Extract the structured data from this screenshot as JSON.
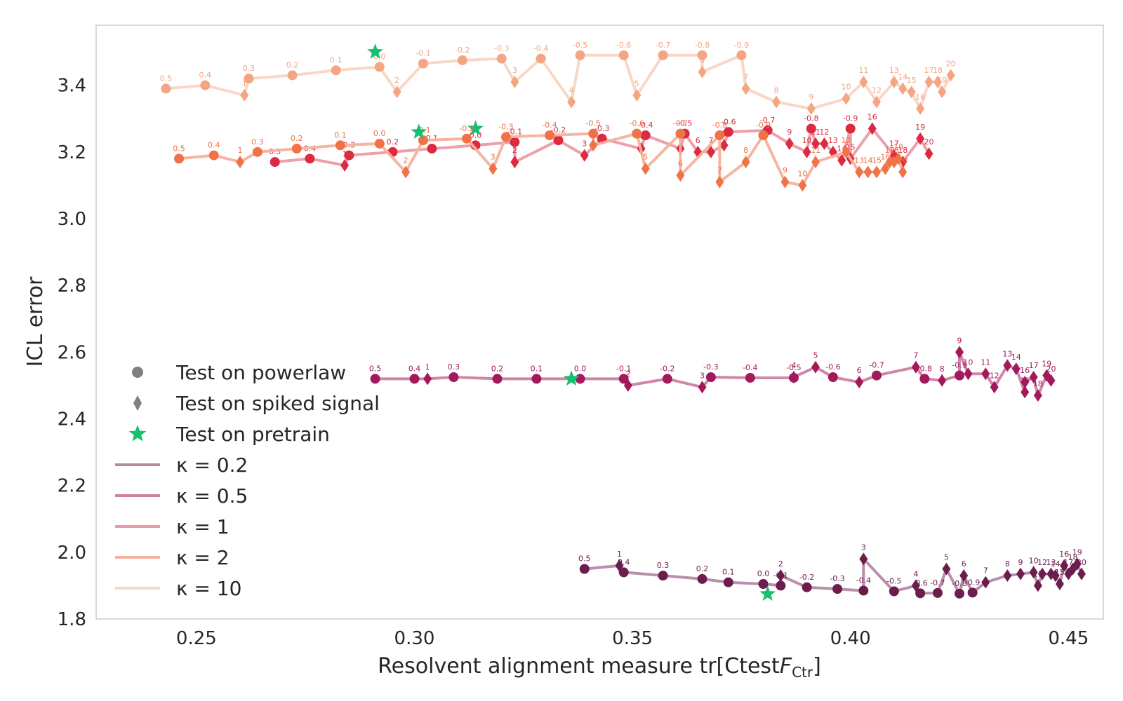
{
  "chart_data": {
    "type": "scatter",
    "xlabel": "Resolvent alignment measure tr[Ctest",
    "xlabel_math": "F",
    "xlabel_sub": "Ctr",
    "xlabel_close": "]",
    "ylabel": "ICL error",
    "xlim": [
      0.227,
      0.458
    ],
    "ylim": [
      1.8,
      3.58
    ],
    "xticks": [
      0.25,
      0.3,
      0.35,
      0.4,
      0.45
    ],
    "xtick_labels": [
      "0.25",
      "0.30",
      "0.35",
      "0.40",
      "0.45"
    ],
    "yticks": [
      1.8,
      2.0,
      2.2,
      2.4,
      2.6,
      2.8,
      3.0,
      3.2,
      3.4
    ],
    "ytick_labels": [
      "1.8",
      "2.0",
      "2.2",
      "2.4",
      "2.6",
      "2.8",
      "3.0",
      "3.2",
      "3.4"
    ],
    "grid": false,
    "legend_position": "lower-left",
    "legend": {
      "markers": [
        {
          "marker": "circle",
          "label": "Test on powerlaw"
        },
        {
          "marker": "diamond",
          "label": "Test on spiked signal"
        },
        {
          "marker": "star",
          "label": "Test on pretrain"
        }
      ],
      "kappa_prefix": "κ = ",
      "series_order": [
        "k02",
        "k05",
        "k1",
        "k2",
        "k10"
      ]
    },
    "series": [
      {
        "id": "k02",
        "kappa": "0.2",
        "color": "#6b1d4e",
        "line_color": "#b48aa5",
        "powerlaw": {
          "labels": [
            "0.5",
            "0.4",
            "0.3",
            "0.2",
            "0.1",
            "0.0",
            "-0.1",
            "-0.2",
            "-0.3",
            "-0.4",
            "-0.5",
            "-0.6",
            "-0.7",
            "-0.8",
            "-0.9"
          ],
          "x": [
            0.339,
            0.348,
            0.357,
            0.366,
            0.372,
            0.38,
            0.384,
            0.39,
            0.397,
            0.403,
            0.41,
            0.416,
            0.42,
            0.425,
            0.428
          ],
          "y": [
            1.95,
            1.94,
            1.93,
            1.92,
            1.91,
            1.905,
            1.9,
            1.895,
            1.89,
            1.885,
            1.883,
            1.877,
            1.878,
            1.876,
            1.879
          ]
        },
        "spiked": {
          "labels": [
            "1",
            "2",
            "3",
            "4",
            "5",
            "6",
            "7",
            "8",
            "9",
            "10",
            "11",
            "12",
            "13",
            "14",
            "15",
            "16",
            "17",
            "18",
            "19",
            "20"
          ],
          "x": [
            0.347,
            0.384,
            0.403,
            0.415,
            0.422,
            0.426,
            0.431,
            0.436,
            0.439,
            0.442,
            0.443,
            0.444,
            0.446,
            0.447,
            0.448,
            0.449,
            0.45,
            0.451,
            0.452,
            0.453
          ],
          "y": [
            1.96,
            1.93,
            1.98,
            1.9,
            1.95,
            1.93,
            1.91,
            1.93,
            1.935,
            1.94,
            1.9,
            1.935,
            1.935,
            1.93,
            1.905,
            1.96,
            1.935,
            1.95,
            1.965,
            1.935
          ]
        },
        "pretrain": {
          "x": 0.381,
          "y": 1.875
        }
      },
      {
        "id": "k05",
        "kappa": "0.5",
        "color": "#a3195b",
        "line_color": "#cf7fa4",
        "powerlaw": {
          "labels": [
            "0.5",
            "0.4",
            "0.3",
            "0.2",
            "0.1",
            "0.0",
            "-0.1",
            "-0.2",
            "-0.3",
            "-0.4",
            "-0.5",
            "-0.6",
            "-0.7",
            "-0.8",
            "-0.9"
          ],
          "x": [
            0.291,
            0.3,
            0.309,
            0.319,
            0.328,
            0.338,
            0.348,
            0.358,
            0.368,
            0.377,
            0.387,
            0.396,
            0.406,
            0.417,
            0.425
          ],
          "y": [
            2.52,
            2.52,
            2.525,
            2.52,
            2.52,
            2.52,
            2.52,
            2.52,
            2.525,
            2.523,
            2.523,
            2.525,
            2.53,
            2.52,
            2.53
          ]
        },
        "spiked": {
          "labels": [
            "1",
            "2",
            "3",
            "4",
            "5",
            "6",
            "7",
            "8",
            "9",
            "10",
            "11",
            "12",
            "13",
            "14",
            "15",
            "16",
            "17",
            "18",
            "19",
            "20"
          ],
          "x": [
            0.303,
            0.349,
            0.366,
            0.387,
            0.392,
            0.402,
            0.415,
            0.421,
            0.425,
            0.427,
            0.431,
            0.433,
            0.436,
            0.438,
            0.44,
            0.44,
            0.442,
            0.443,
            0.445,
            0.446
          ],
          "y": [
            2.52,
            2.5,
            2.495,
            2.525,
            2.555,
            2.51,
            2.555,
            2.515,
            2.6,
            2.535,
            2.535,
            2.495,
            2.56,
            2.55,
            2.48,
            2.51,
            2.525,
            2.47,
            2.53,
            2.515
          ]
        },
        "pretrain": {
          "x": 0.336,
          "y": 2.52
        }
      },
      {
        "id": "k1",
        "kappa": "1",
        "color": "#dc2a41",
        "line_color": "#ec9aa5",
        "powerlaw": {
          "labels": [
            "0.5",
            "0.4",
            "0.3",
            "0.2",
            "0.1",
            "0.0",
            "-0.1",
            "-0.2",
            "-0.3",
            "-0.4",
            "-0.5",
            "-0.6",
            "-0.7",
            "-0.8",
            "-0.9"
          ],
          "x": [
            0.268,
            0.276,
            0.285,
            0.295,
            0.304,
            0.314,
            0.323,
            0.333,
            0.343,
            0.353,
            0.362,
            0.372,
            0.381,
            0.391,
            0.4
          ],
          "y": [
            3.17,
            3.18,
            3.19,
            3.2,
            3.21,
            3.22,
            3.23,
            3.235,
            3.24,
            3.25,
            3.255,
            3.26,
            3.265,
            3.27,
            3.27
          ]
        },
        "spiked": {
          "labels": [
            "1",
            "2",
            "3",
            "4",
            "5",
            "6",
            "7",
            "8",
            "9",
            "10",
            "11",
            "12",
            "13",
            "14",
            "15",
            "16",
            "17",
            "18",
            "19",
            "20"
          ],
          "x": [
            0.284,
            0.323,
            0.339,
            0.352,
            0.361,
            0.365,
            0.368,
            0.371,
            0.386,
            0.39,
            0.392,
            0.394,
            0.396,
            0.398,
            0.4,
            0.405,
            0.41,
            0.412,
            0.416,
            0.418
          ],
          "y": [
            3.16,
            3.17,
            3.19,
            3.21,
            3.21,
            3.2,
            3.2,
            3.22,
            3.225,
            3.2,
            3.225,
            3.225,
            3.2,
            3.175,
            3.18,
            3.27,
            3.19,
            3.17,
            3.24,
            3.195
          ]
        },
        "pretrain": {
          "x": 0.314,
          "y": 3.27
        }
      },
      {
        "id": "k2",
        "kappa": "2",
        "color": "#ef7347",
        "line_color": "#f5b19c",
        "powerlaw": {
          "labels": [
            "0.5",
            "0.4",
            "0.3",
            "0.2",
            "0.1",
            "0.0",
            "-0.1",
            "-0.2",
            "-0.3",
            "-0.4",
            "-0.5",
            "-0.6",
            "-0.7",
            "-0.8",
            "-0.9"
          ],
          "x": [
            0.246,
            0.254,
            0.264,
            0.273,
            0.283,
            0.292,
            0.302,
            0.312,
            0.321,
            0.331,
            0.341,
            0.351,
            0.361,
            0.37,
            0.38
          ],
          "y": [
            3.18,
            3.19,
            3.2,
            3.21,
            3.22,
            3.225,
            3.235,
            3.24,
            3.245,
            3.25,
            3.255,
            3.255,
            3.255,
            3.25,
            3.25
          ]
        },
        "spiked": {
          "labels": [
            "1",
            "2",
            "3",
            "4",
            "5",
            "6",
            "7",
            "8",
            "9",
            "10",
            "11",
            "12",
            "13",
            "14",
            "15",
            "16",
            "17",
            "18",
            "19",
            "20"
          ],
          "x": [
            0.26,
            0.298,
            0.318,
            0.341,
            0.353,
            0.361,
            0.37,
            0.376,
            0.385,
            0.389,
            0.392,
            0.399,
            0.402,
            0.404,
            0.406,
            0.408,
            0.409,
            0.41,
            0.411,
            0.412
          ],
          "y": [
            3.17,
            3.14,
            3.15,
            3.22,
            3.15,
            3.13,
            3.11,
            3.17,
            3.11,
            3.1,
            3.17,
            3.2,
            3.14,
            3.14,
            3.14,
            3.15,
            3.17,
            3.17,
            3.18,
            3.14
          ]
        },
        "pretrain": {
          "x": 0.301,
          "y": 3.26
        }
      },
      {
        "id": "k10",
        "kappa": "10",
        "color": "#f4a582",
        "line_color": "#f9d5c3",
        "powerlaw": {
          "labels": [
            "0.5",
            "0.4",
            "0.3",
            "0.2",
            "0.1",
            "0.0",
            "-0.1",
            "-0.2",
            "-0.3",
            "-0.4",
            "-0.5",
            "-0.6",
            "-0.7",
            "-0.8",
            "-0.9"
          ],
          "x": [
            0.243,
            0.252,
            0.262,
            0.272,
            0.282,
            0.292,
            0.302,
            0.311,
            0.32,
            0.329,
            0.338,
            0.348,
            0.357,
            0.366,
            0.375
          ],
          "y": [
            3.39,
            3.4,
            3.42,
            3.43,
            3.445,
            3.455,
            3.465,
            3.475,
            3.48,
            3.48,
            3.49,
            3.49,
            3.49,
            3.49,
            3.49
          ]
        },
        "spiked": {
          "labels": [
            "1",
            "2",
            "3",
            "4",
            "5",
            "6",
            "7",
            "8",
            "9",
            "10",
            "11",
            "12",
            "13",
            "14",
            "15",
            "16",
            "17",
            "18",
            "19",
            "20"
          ],
          "x": [
            0.261,
            0.296,
            0.323,
            0.336,
            0.351,
            0.366,
            0.376,
            0.383,
            0.391,
            0.399,
            0.403,
            0.406,
            0.41,
            0.412,
            0.414,
            0.416,
            0.418,
            0.42,
            0.421,
            0.423
          ],
          "y": [
            3.37,
            3.38,
            3.41,
            3.35,
            3.37,
            3.44,
            3.39,
            3.35,
            3.33,
            3.36,
            3.41,
            3.35,
            3.41,
            3.39,
            3.38,
            3.33,
            3.41,
            3.41,
            3.38,
            3.43
          ]
        },
        "pretrain": {
          "x": 0.291,
          "y": 3.5
        }
      }
    ]
  }
}
